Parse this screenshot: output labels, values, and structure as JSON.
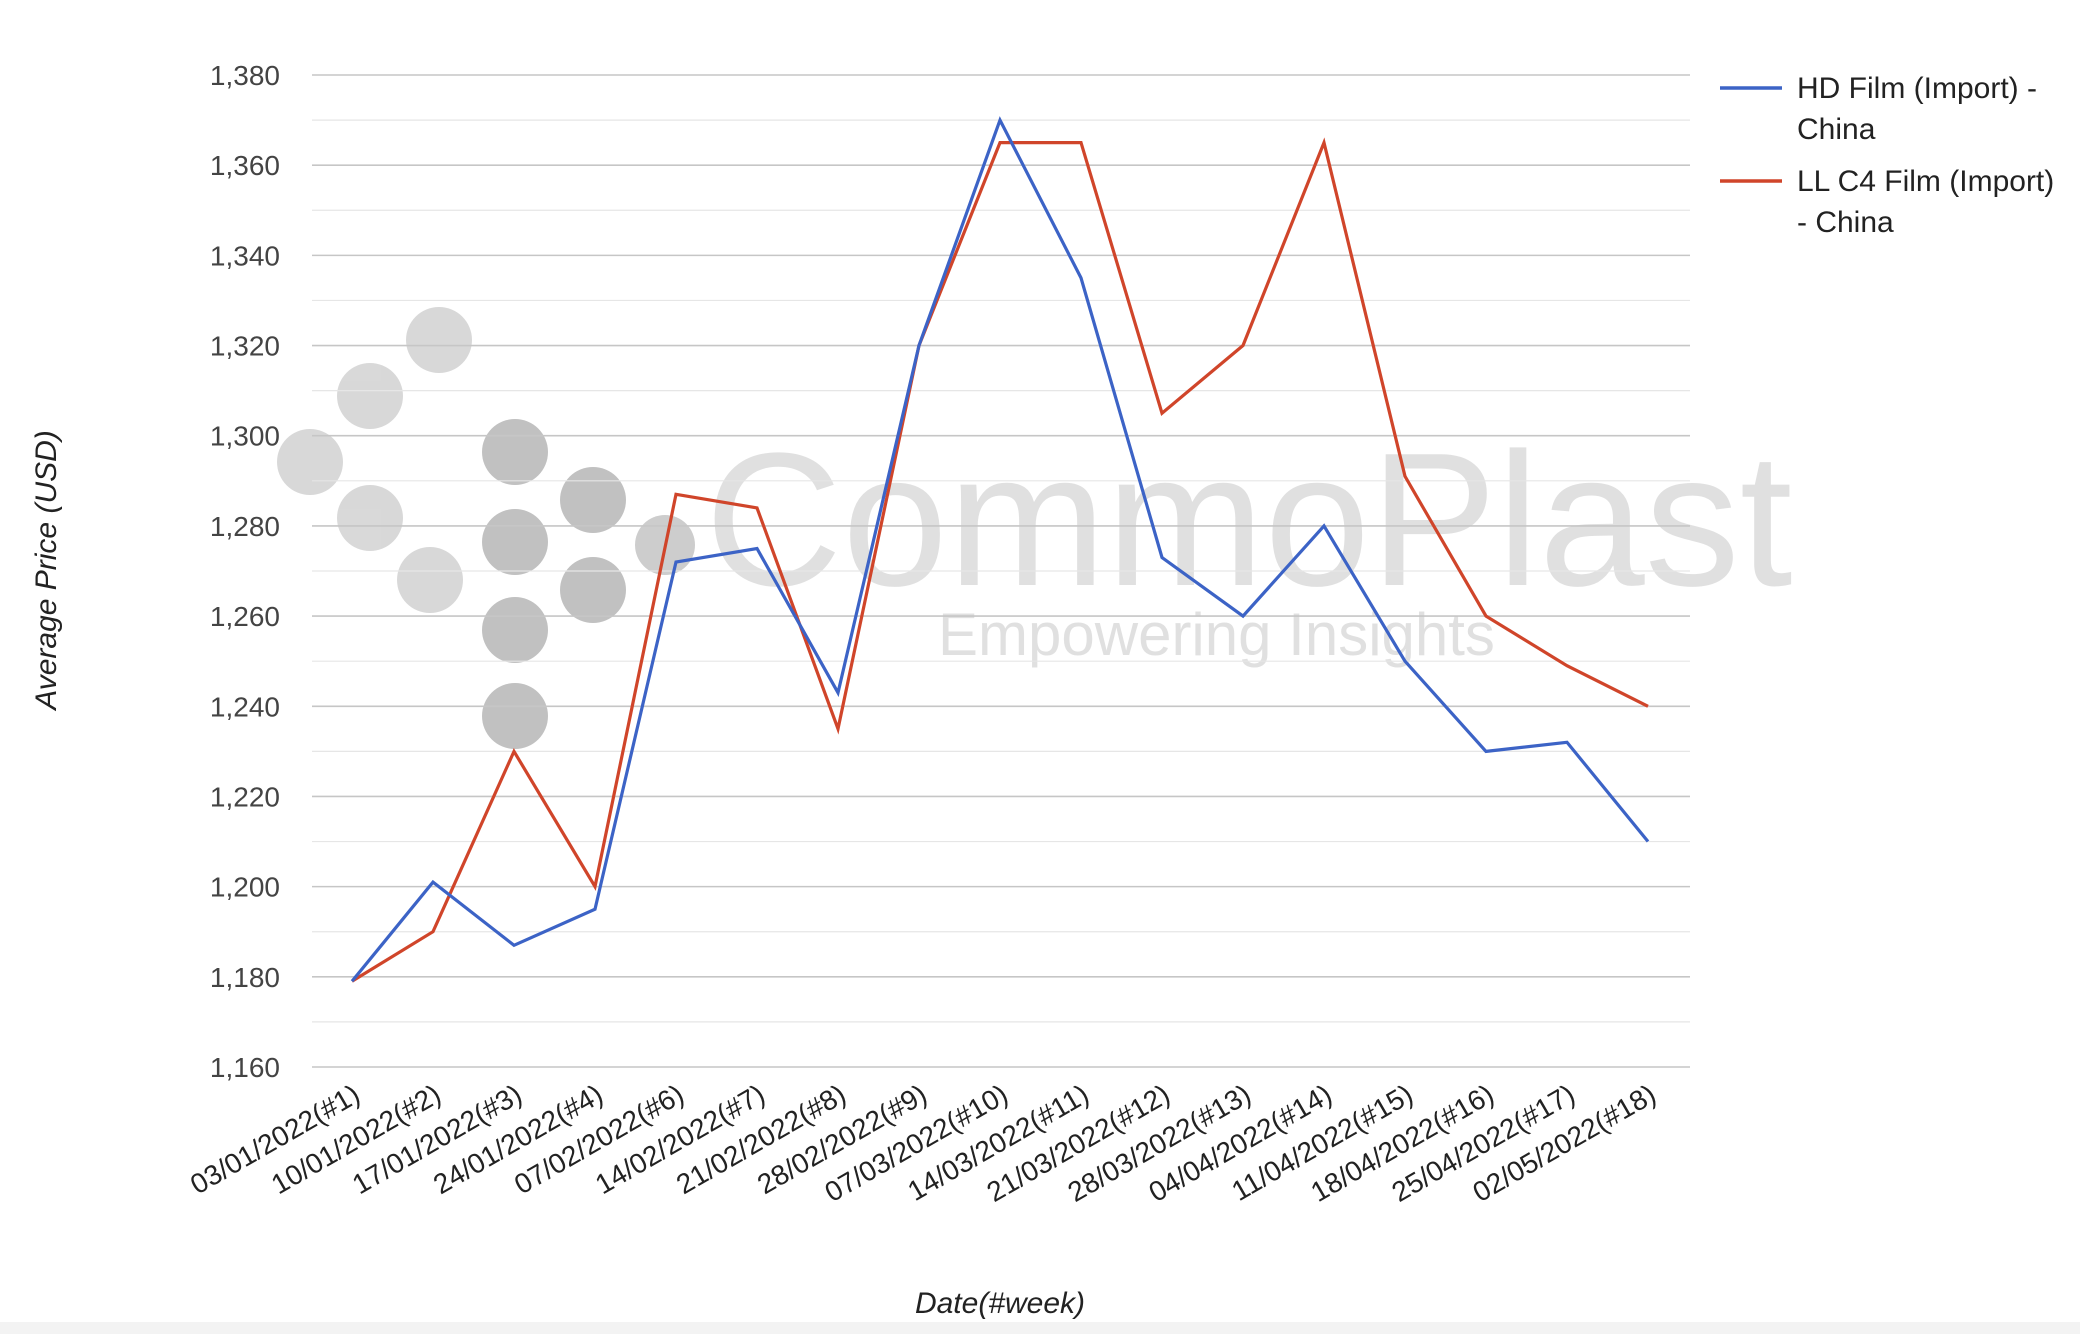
{
  "chart_data": {
    "type": "line",
    "xlabel": "Date(#week)",
    "ylabel": "Average Price (USD)",
    "ylim": [
      1160,
      1380
    ],
    "y_ticks": [
      "1,160",
      "1,180",
      "1,200",
      "1,220",
      "1,240",
      "1,260",
      "1,280",
      "1,300",
      "1,320",
      "1,340",
      "1,360",
      "1,380"
    ],
    "y_tick_values": [
      1160,
      1180,
      1200,
      1220,
      1240,
      1260,
      1280,
      1300,
      1320,
      1340,
      1360,
      1380
    ],
    "grid": true,
    "legend_position": "top-right",
    "categories": [
      "03/01/2022(#1)",
      "10/01/2022(#2)",
      "17/01/2022(#3)",
      "24/01/2022(#4)",
      "07/02/2022(#6)",
      "14/02/2022(#7)",
      "21/02/2022(#8)",
      "28/02/2022(#9)",
      "07/03/2022(#10)",
      "14/03/2022(#11)",
      "21/03/2022(#12)",
      "28/03/2022(#13)",
      "04/04/2022(#14)",
      "11/04/2022(#15)",
      "18/04/2022(#16)",
      "25/04/2022(#17)",
      "02/05/2022(#18)"
    ],
    "series": [
      {
        "name": "HD Film (Import) - China",
        "name_lines": [
          "HD Film (Import) -",
          "China"
        ],
        "color": "#3c63c6",
        "values": [
          1179,
          1201,
          1187,
          1195,
          1272,
          1275,
          1243,
          1320,
          1370,
          1335,
          1273,
          1260,
          1280,
          1250,
          1230,
          1232,
          1210
        ]
      },
      {
        "name": "LL C4 Film (Import) - China",
        "name_lines": [
          "LL C4 Film (Import)",
          "- China"
        ],
        "color": "#d0452a",
        "values": [
          1179,
          1190,
          1230,
          1200,
          1287,
          1284,
          1235,
          1320,
          1365,
          1365,
          1305,
          1320,
          1365,
          1291,
          1260,
          1249,
          1240
        ]
      }
    ]
  },
  "watermark": {
    "name": "CommoPlast",
    "tagline": "Empowering Insights"
  }
}
